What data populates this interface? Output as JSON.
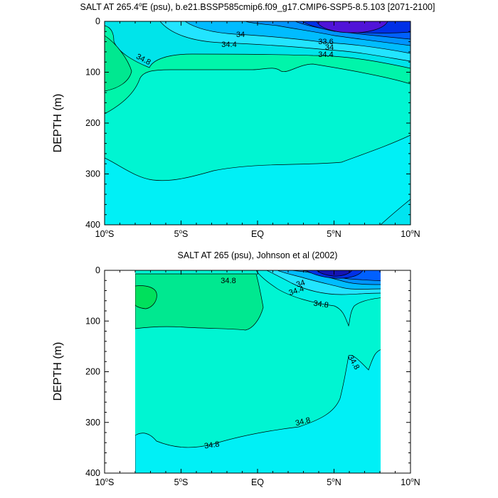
{
  "chart_data": [
    {
      "type": "contour",
      "title": "SALT AT 265.4°E (psu), b.e21.BSSP585cmip6.f09_g17.CMIP6-SSP5-8.5.103 [2071-2100]",
      "title_parts": {
        "prefix": "SALT AT 265.4",
        "degree": "o",
        "suffix": "E (psu), b.e21.BSSP585cmip6.f09_g17.CMIP6-SSP5-8.5.103 [2071-2100]"
      },
      "xlabel": "",
      "ylabel": "DEPTH (m)",
      "xlim": [
        -10,
        10
      ],
      "ylim": [
        0,
        400
      ],
      "y_inverted": true,
      "x_ticks": [
        -10,
        -5,
        0,
        5,
        10
      ],
      "x_tick_labels": [
        {
          "main": "10",
          "deg": "o",
          "hem": "S"
        },
        {
          "main": "5",
          "deg": "o",
          "hem": "S"
        },
        {
          "main": "EQ",
          "deg": "",
          "hem": ""
        },
        {
          "main": "5",
          "deg": "o",
          "hem": "N"
        },
        {
          "main": "10",
          "deg": "o",
          "hem": "N"
        }
      ],
      "y_ticks": [
        "0",
        "100",
        "200",
        "300",
        "400"
      ],
      "contour_labels": [
        {
          "text": "34",
          "lat": 0.3,
          "depth": 25
        },
        {
          "text": "34.4",
          "lat": 0.5,
          "depth": 47
        },
        {
          "text": "34.8",
          "lat": -9.0,
          "depth": 68
        },
        {
          "text": "33.6",
          "lat": 4.4,
          "depth": 43
        },
        {
          "text": "34",
          "lat": 4.8,
          "depth": 53
        },
        {
          "text": "34.4",
          "lat": 5.0,
          "depth": 67
        }
      ]
    },
    {
      "type": "contour",
      "title": "SALT AT 265 (psu), Johnson et al (2002)",
      "xlabel": "",
      "ylabel": "DEPTH (m)",
      "xlim": [
        -10,
        10
      ],
      "ylim": [
        0,
        400
      ],
      "y_inverted": true,
      "data_lat_range": [
        -8,
        8
      ],
      "x_ticks": [
        -10,
        -5,
        0,
        5,
        10
      ],
      "x_tick_labels": [
        {
          "main": "10",
          "deg": "o",
          "hem": "S"
        },
        {
          "main": "5",
          "deg": "o",
          "hem": "S"
        },
        {
          "main": "EQ",
          "deg": "",
          "hem": ""
        },
        {
          "main": "5",
          "deg": "o",
          "hem": "N"
        },
        {
          "main": "10",
          "deg": "o",
          "hem": "N"
        }
      ],
      "y_ticks": [
        "0",
        "100",
        "200",
        "300",
        "400"
      ],
      "contour_labels": [
        {
          "text": "34.8",
          "lat": -4.3,
          "depth": 22
        },
        {
          "text": "34",
          "lat": 2.7,
          "depth": 28
        },
        {
          "text": "34.4",
          "lat": 2.4,
          "depth": 40
        },
        {
          "text": "34.8",
          "lat": 4.1,
          "depth": 70
        },
        {
          "text": "34.8",
          "lat": 6.0,
          "depth": 185
        },
        {
          "text": "34.8",
          "lat": 3.3,
          "depth": 303
        },
        {
          "text": "34.8",
          "lat": -4.7,
          "depth": 345
        }
      ]
    }
  ]
}
